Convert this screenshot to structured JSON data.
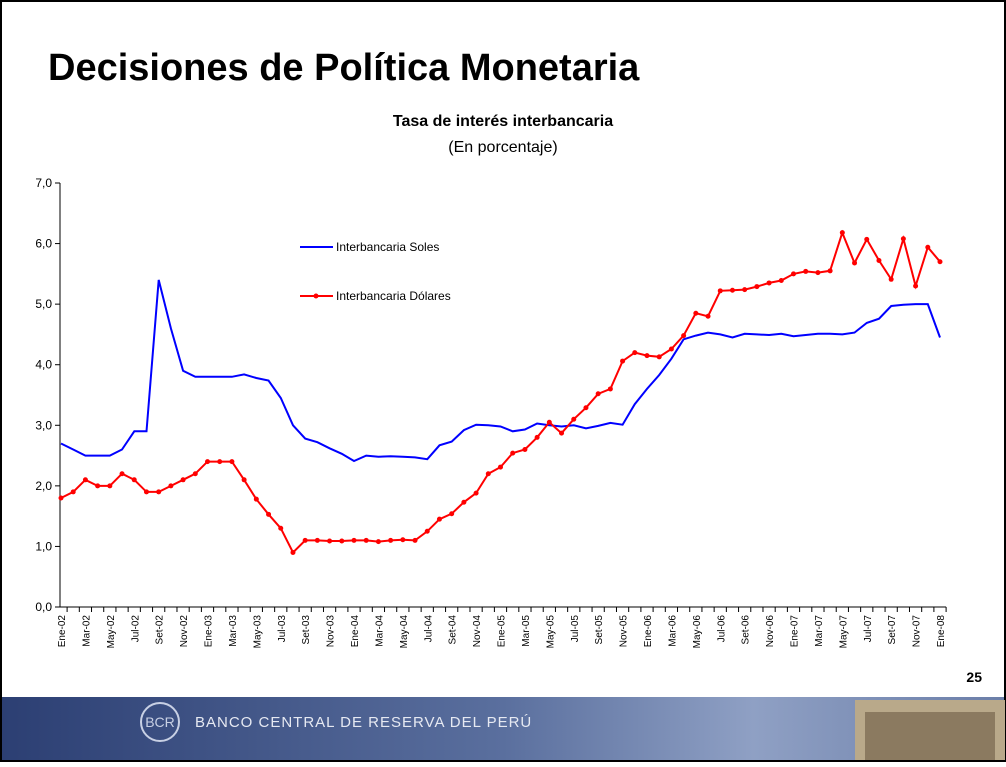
{
  "slide": {
    "title": "Decisiones de Política Monetaria",
    "page_number": "25",
    "footer": "BANCO CENTRAL DE RESERVA DEL PERÚ"
  },
  "chart_data": {
    "type": "line",
    "title": "Tasa de interés interbancaria",
    "subtitle": "(En porcentaje)",
    "categories": [
      "Ene-02",
      null,
      "Mar-02",
      null,
      "May-02",
      null,
      "Jul-02",
      null,
      "Set-02",
      null,
      "Nov-02",
      null,
      "Ene-03",
      null,
      "Mar-03",
      null,
      "May-03",
      null,
      "Jul-03",
      null,
      "Set-03",
      null,
      "Nov-03",
      null,
      "Ene-04",
      null,
      "Mar-04",
      null,
      "May-04",
      null,
      "Jul-04",
      null,
      "Set-04",
      null,
      "Nov-04",
      null,
      "Ene-05",
      null,
      "Mar-05",
      null,
      "May-05",
      null,
      "Jul-05",
      null,
      "Set-05",
      null,
      "Nov-05",
      null,
      "Ene-06",
      null,
      "Mar-06",
      null,
      "May-06",
      null,
      "Jul-06",
      null,
      "Set-06",
      null,
      "Nov-06",
      null,
      "Ene-07",
      null,
      "Mar-07",
      null,
      "May-07",
      null,
      "Jul-07",
      null,
      "Set-07",
      null,
      "Nov-07",
      null,
      "Ene-08"
    ],
    "series": [
      {
        "name": "Interbancaria Soles",
        "color": "#0000ff",
        "marker": false,
        "values": [
          2.7,
          2.6,
          2.5,
          2.5,
          2.5,
          2.6,
          2.9,
          2.9,
          5.4,
          4.6,
          3.9,
          3.8,
          3.8,
          3.8,
          3.8,
          3.84,
          3.78,
          3.74,
          3.45,
          3.0,
          2.78,
          2.72,
          2.62,
          2.53,
          2.41,
          2.5,
          2.48,
          2.49,
          2.48,
          2.47,
          2.44,
          2.67,
          2.73,
          2.92,
          3.01,
          3.0,
          2.98,
          2.9,
          2.93,
          3.03,
          3.0,
          2.98,
          3.0,
          2.95,
          2.99,
          3.04,
          3.01,
          3.35,
          3.6,
          3.83,
          4.1,
          4.42,
          4.48,
          4.53,
          4.5,
          4.45,
          4.51,
          4.5,
          4.49,
          4.51,
          4.47,
          4.49,
          4.51,
          4.51,
          4.5,
          4.53,
          4.69,
          4.76,
          4.97,
          4.99,
          5.0,
          5.0,
          4.45
        ]
      },
      {
        "name": "Interbancaria Dólares",
        "color": "#ff0000",
        "marker": true,
        "values": [
          1.8,
          1.9,
          2.1,
          2.0,
          2.0,
          2.2,
          2.1,
          1.9,
          1.9,
          2.0,
          2.1,
          2.2,
          2.4,
          2.4,
          2.4,
          2.1,
          1.78,
          1.53,
          1.3,
          0.9,
          1.1,
          1.1,
          1.09,
          1.09,
          1.1,
          1.1,
          1.08,
          1.1,
          1.11,
          1.1,
          1.25,
          1.45,
          1.54,
          1.73,
          1.88,
          2.2,
          2.31,
          2.54,
          2.6,
          2.8,
          3.05,
          2.87,
          3.1,
          3.29,
          3.52,
          3.6,
          4.06,
          4.2,
          4.15,
          4.13,
          4.26,
          4.48,
          4.85,
          4.8,
          5.22,
          5.23,
          5.24,
          5.29,
          5.35,
          5.39,
          5.5,
          5.54,
          5.52,
          5.55,
          6.18,
          5.68,
          6.07,
          5.72,
          5.41,
          6.08,
          5.3,
          5.94,
          5.7
        ]
      }
    ],
    "ylim": [
      0,
      7
    ],
    "yticks": [
      {
        "value": 0,
        "label": "0,0"
      },
      {
        "value": 1,
        "label": "1,0"
      },
      {
        "value": 2,
        "label": "2,0"
      },
      {
        "value": 3,
        "label": "3,0"
      },
      {
        "value": 4,
        "label": "4,0"
      },
      {
        "value": 5,
        "label": "5,0"
      },
      {
        "value": 6,
        "label": "6,0"
      },
      {
        "value": 7,
        "label": "7,0"
      }
    ],
    "grid": false
  }
}
